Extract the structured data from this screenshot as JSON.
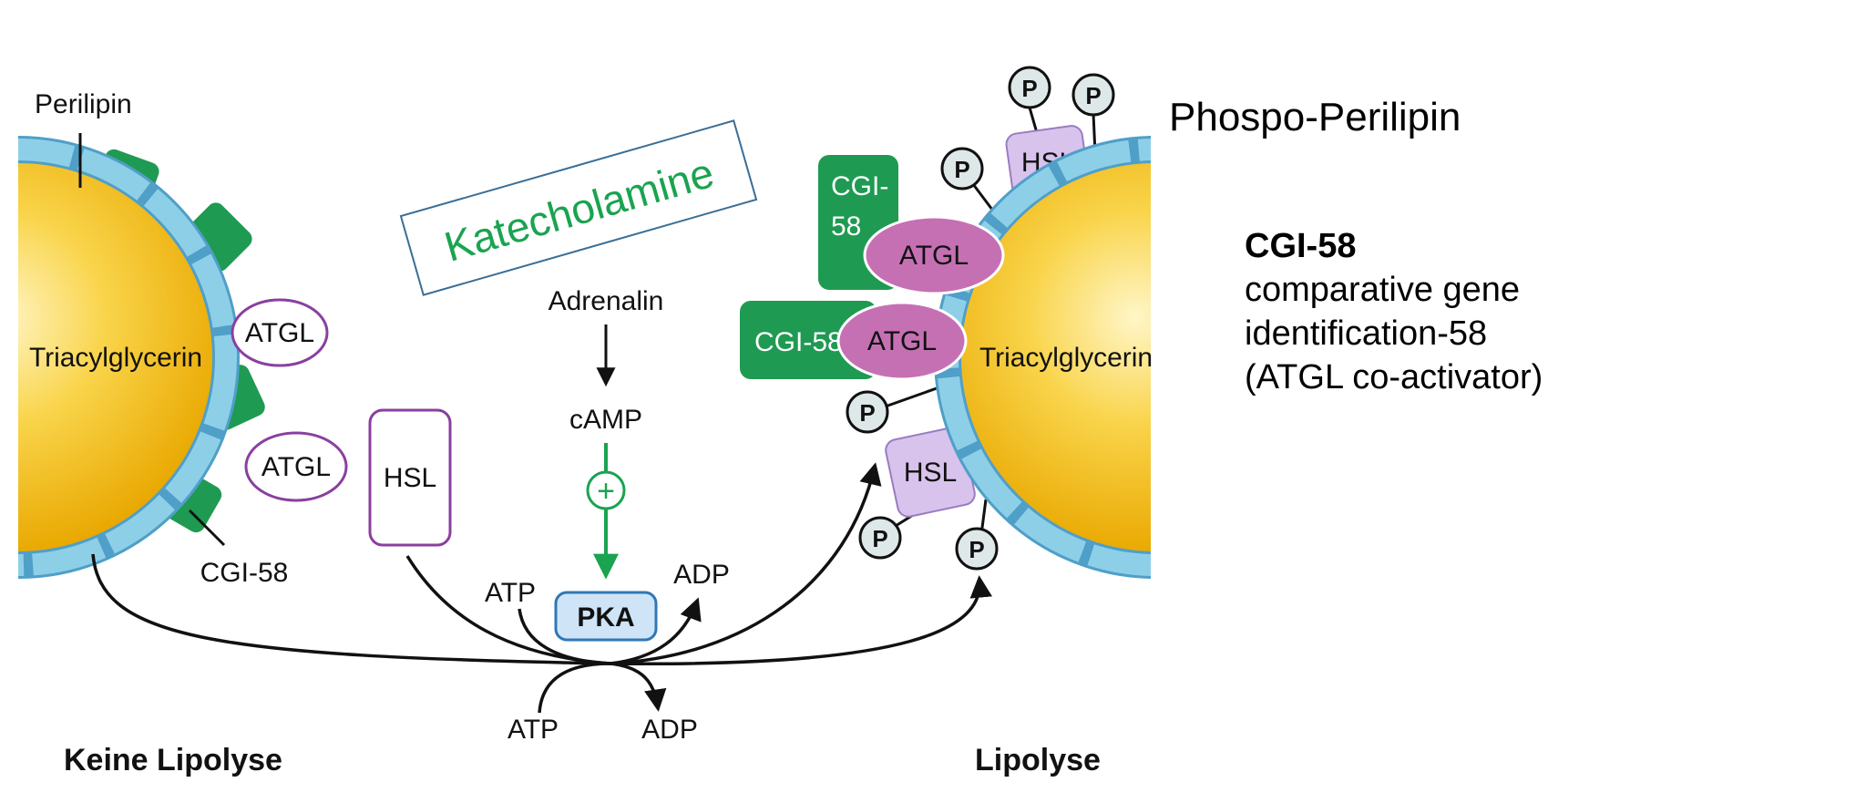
{
  "left_panel": {
    "caption": "Keine Lipolyse",
    "droplet_label": "Triacylglycerin",
    "perilipin_label": "Perilipin",
    "atgl_labels": [
      "ATGL",
      "ATGL"
    ],
    "cgi_label": "CGI-58"
  },
  "middle": {
    "stimulus_box": "Katecholamine",
    "adrenalin": "Adrenalin",
    "camp": "cAMP",
    "plus_sign": "+",
    "pka": "PKA",
    "hsl": "HSL",
    "atp_labels": [
      "ATP",
      "ATP"
    ],
    "adp_labels": [
      "ADP",
      "ADP"
    ]
  },
  "right_panel": {
    "caption": "Lipolyse",
    "droplet_label": "Triacylglycerin",
    "cgi_upper": [
      "CGI-",
      "58"
    ],
    "cgi_lower": "CGI-58",
    "atgl_labels": [
      "ATGL",
      "ATGL"
    ],
    "hsl_labels": [
      "HSL",
      "HSL"
    ],
    "phosphate_label": "P"
  },
  "side_notes": {
    "phospo_title": "Phospo-Perilipin",
    "cgi_heading": "CGI-58",
    "cgi_lines": [
      "comparative gene",
      "identification-58",
      "(ATGL co-activator)"
    ]
  },
  "colors": {
    "droplet_yellow": "#f6c21c",
    "perilipin_blue": "#8ecfe8",
    "cgi_green": "#1f9a52",
    "atgl_pink": "#c670b4",
    "hsl_lilac": "#d8c3ec",
    "pka_blue": "#cfe4f7",
    "pathway_green": "#1aa350",
    "stimulus_box_border": "#3a6e96"
  }
}
